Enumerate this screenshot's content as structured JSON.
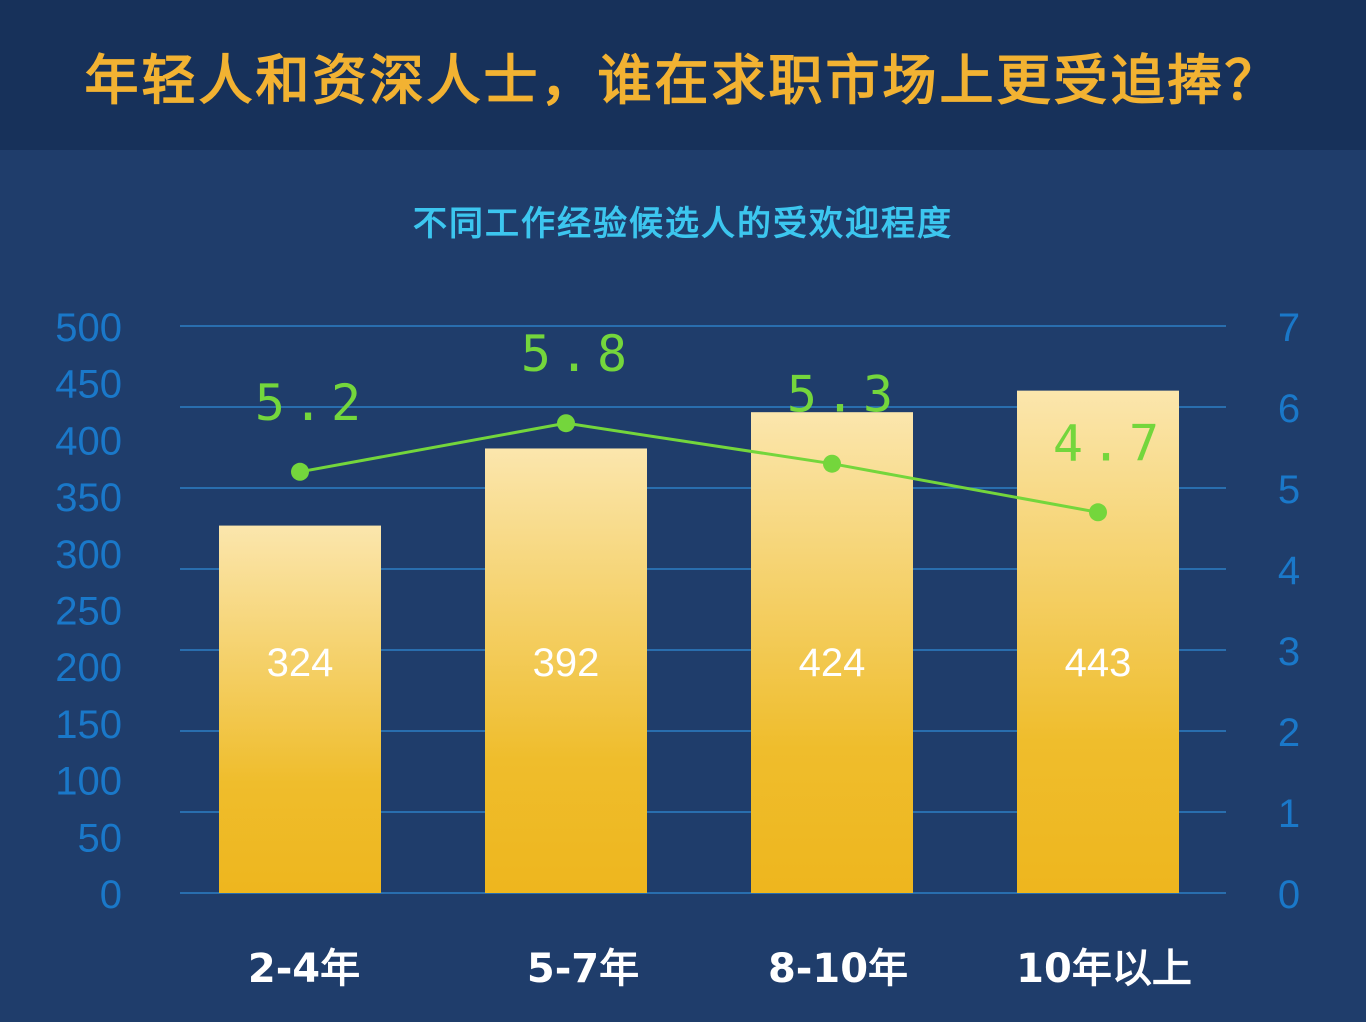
{
  "header": {
    "title": "年轻人和资深人士，谁在求职市场上更受追捧？"
  },
  "chart_data": {
    "type": "bar",
    "title": "不同工作经验候选人的受欢迎程度",
    "categories": [
      "2-4年",
      "5-7年",
      "8-10年",
      "10年以上"
    ],
    "series": [
      {
        "values": [
          324,
          392,
          424,
          443
        ],
        "axis": "left",
        "type": "bar"
      },
      {
        "values": [
          5.2,
          5.8,
          5.3,
          4.7
        ],
        "axis": "right",
        "type": "line"
      }
    ],
    "y_left": {
      "min": 0,
      "max": 500,
      "ticks": [
        0,
        50,
        100,
        150,
        200,
        250,
        300,
        350,
        400,
        450,
        500
      ]
    },
    "y_right": {
      "min": 0,
      "max": 7,
      "ticks": [
        0,
        1,
        2,
        3,
        4,
        5,
        6,
        7
      ]
    },
    "grid": true,
    "colors": {
      "bar_top": "#fbe6ad",
      "bar_bottom": "#efb820",
      "line": "#74d63c",
      "axis_text": "#1a78c9",
      "grid": "#2d7fc4"
    }
  }
}
